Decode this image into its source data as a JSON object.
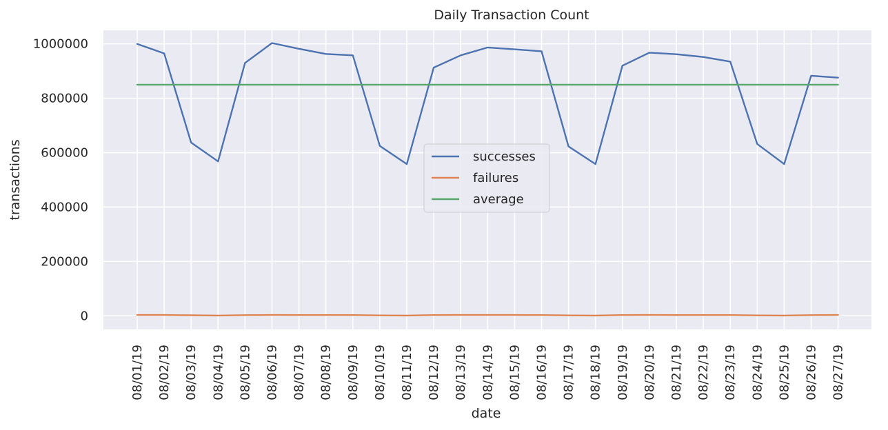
{
  "chart_data": {
    "type": "line",
    "title": "Daily Transaction Count",
    "xlabel": "date",
    "ylabel": "transactions",
    "x": [
      "08/01/19",
      "08/02/19",
      "08/03/19",
      "08/04/19",
      "08/05/19",
      "08/06/19",
      "08/07/19",
      "08/08/19",
      "08/09/19",
      "08/10/19",
      "08/11/19",
      "08/12/19",
      "08/13/19",
      "08/14/19",
      "08/15/19",
      "08/16/19",
      "08/17/19",
      "08/18/19",
      "08/19/19",
      "08/20/19",
      "08/21/19",
      "08/22/19",
      "08/23/19",
      "08/24/19",
      "08/25/19",
      "08/26/19",
      "08/27/19"
    ],
    "yticks": [
      0,
      200000,
      400000,
      600000,
      800000,
      1000000
    ],
    "ylim": [
      -50000,
      1050000
    ],
    "grid": true,
    "legend": "center",
    "series": [
      {
        "name": "successes",
        "color": "#4c72b0",
        "values": [
          1000000,
          965000,
          637000,
          568000,
          930000,
          1003000,
          982000,
          963000,
          958000,
          625000,
          558000,
          913000,
          958000,
          987000,
          980000,
          973000,
          623000,
          558000,
          920000,
          968000,
          962000,
          952000,
          935000,
          632000,
          558000,
          883000,
          876000
        ]
      },
      {
        "name": "failures",
        "color": "#dd8452",
        "values": [
          3000,
          3000,
          2000,
          1000,
          2500,
          3000,
          2800,
          2700,
          2600,
          1500,
          1000,
          2800,
          2900,
          3000,
          2900,
          2800,
          1500,
          1000,
          2700,
          2900,
          2800,
          2800,
          2700,
          1500,
          1000,
          2500,
          3000
        ]
      },
      {
        "name": "average",
        "color": "#55a868",
        "values": [
          850000,
          850000,
          850000,
          850000,
          850000,
          850000,
          850000,
          850000,
          850000,
          850000,
          850000,
          850000,
          850000,
          850000,
          850000,
          850000,
          850000,
          850000,
          850000,
          850000,
          850000,
          850000,
          850000,
          850000,
          850000,
          850000,
          850000
        ]
      }
    ]
  }
}
